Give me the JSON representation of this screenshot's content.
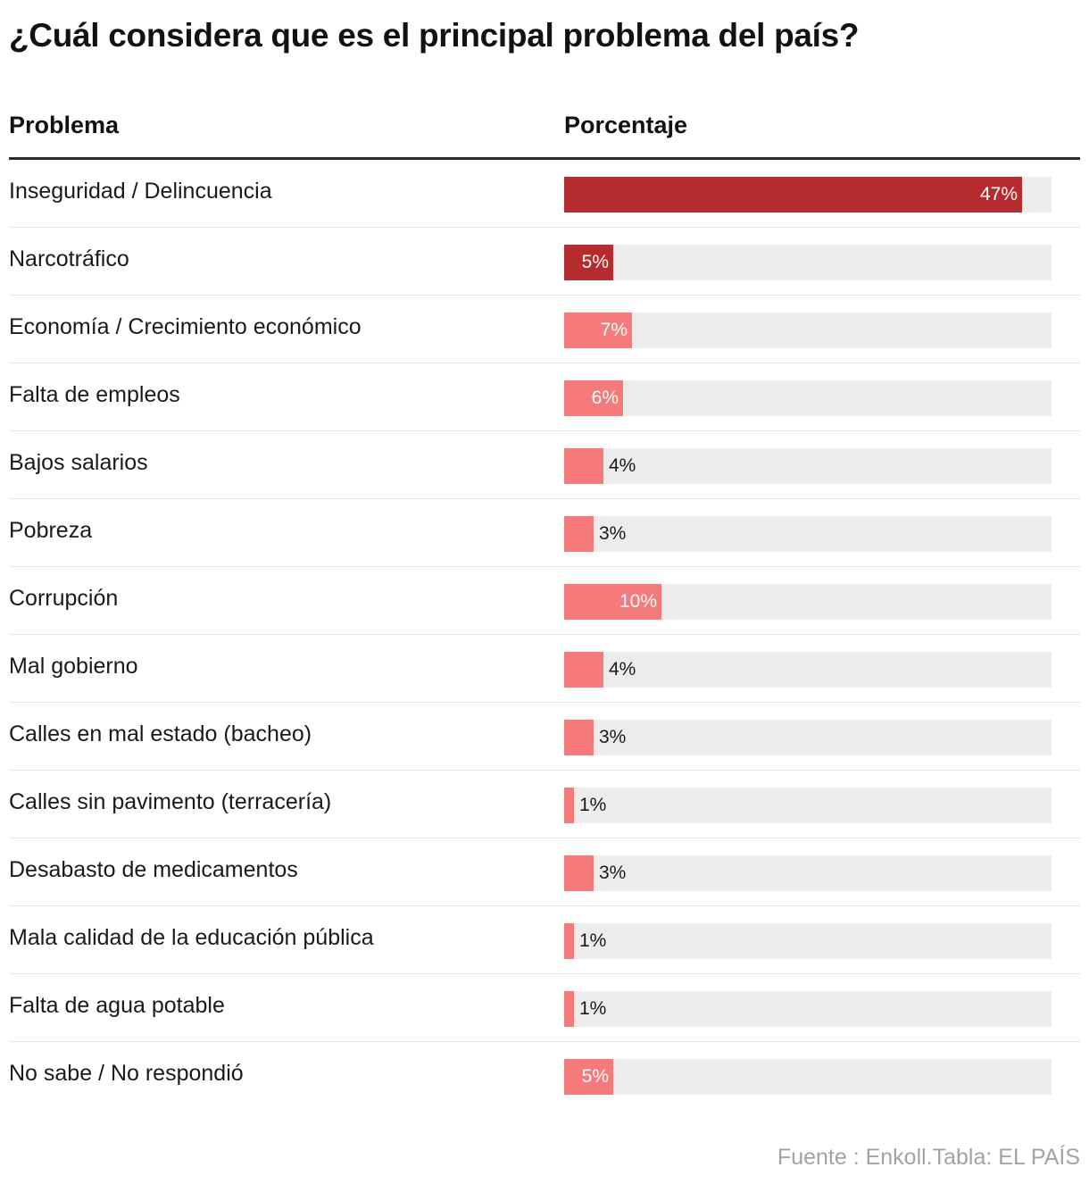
{
  "title": "¿Cuál considera que es el principal problema del país?",
  "columns": {
    "problem": "Problema",
    "percentage": "Porcentaje"
  },
  "source": "Fuente : Enkoll.Tabla: EL PAÍS",
  "colors": {
    "dark": "#b52b2e",
    "light": "#f77a7b",
    "track": "#ececec"
  },
  "chart_data": {
    "type": "bar",
    "orientation": "horizontal",
    "title": "¿Cuál considera que es el principal problema del país?",
    "xlabel": "Porcentaje",
    "ylabel": "Problema",
    "xlim": [
      0,
      50
    ],
    "grid": false,
    "categories": [
      "Inseguridad / Delincuencia",
      "Narcotráfico",
      "Economía / Crecimiento económico",
      "Falta de empleos",
      "Bajos salarios",
      "Pobreza",
      "Corrupción",
      "Mal gobierno",
      "Calles en mal estado (bacheo)",
      "Calles sin pavimento (terracería)",
      "Desabasto de medicamentos",
      "Mala calidad de la educación pública",
      "Falta de agua potable",
      "No sabe / No respondió"
    ],
    "values": [
      47,
      5,
      7,
      6,
      4,
      3,
      10,
      4,
      3,
      1,
      3,
      1,
      1,
      5
    ],
    "labels": [
      "47%",
      "5%",
      "7%",
      "6%",
      "4%",
      "3%",
      "10%",
      "4%",
      "3%",
      "1%",
      "3%",
      "1%",
      "1%",
      "5%"
    ],
    "bar_colors": [
      "dark",
      "dark",
      "light",
      "light",
      "light",
      "light",
      "light",
      "light",
      "light",
      "light",
      "light",
      "light",
      "light",
      "light"
    ]
  }
}
